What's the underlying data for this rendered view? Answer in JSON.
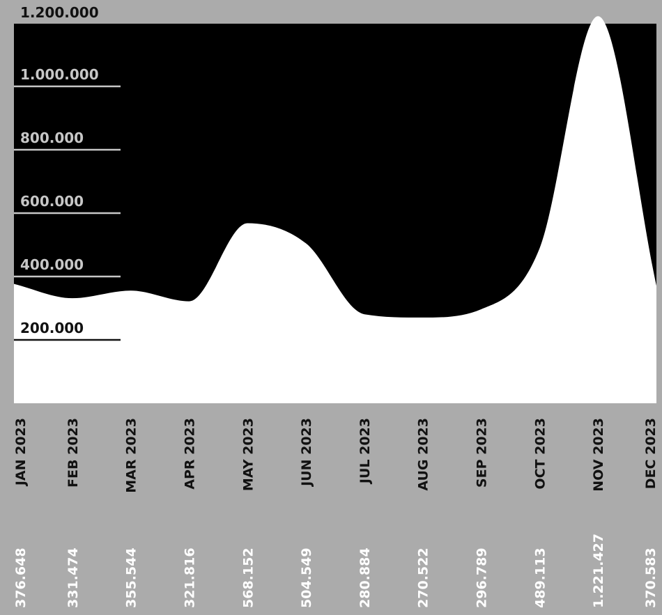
{
  "colors": {
    "background": "#ababab",
    "plot_background": "#000000",
    "area_fill": "#ffffff",
    "axis_text_dark": "#111111",
    "axis_text_light": "#c7c7c7",
    "value_text": "#ffffff"
  },
  "chart_data": {
    "type": "area",
    "categories": [
      "JAN 2023",
      "FEB 2023",
      "MAR 2023",
      "APR 2023",
      "MAY 2023",
      "JUN 2023",
      "JUL 2023",
      "AUG 2023",
      "SEP 2023",
      "OCT 2023",
      "NOV 2023",
      "DEC 2023"
    ],
    "series": [
      {
        "values": [
          376648,
          331474,
          355544,
          321816,
          568152,
          504549,
          280884,
          270522,
          296789,
          489113,
          1221427,
          370583
        ]
      }
    ],
    "value_labels": [
      "376.648",
      "331.474",
      "355.544",
      "321.816",
      "568.152",
      "504.549",
      "280.884",
      "270.522",
      "296.789",
      "489.113",
      "1.221.427",
      "370.583"
    ],
    "y_ticks": [
      {
        "value": 200000,
        "label": "200.000"
      },
      {
        "value": 400000,
        "label": "400.000"
      },
      {
        "value": 600000,
        "label": "600.000"
      },
      {
        "value": 800000,
        "label": "800.000"
      },
      {
        "value": 1000000,
        "label": "1.000.000"
      },
      {
        "value": 1200000,
        "label": "1.200.000"
      }
    ],
    "ylim": [
      0,
      1200000
    ],
    "grid": false,
    "legend": "none",
    "title": "",
    "xlabel": "",
    "ylabel": ""
  }
}
